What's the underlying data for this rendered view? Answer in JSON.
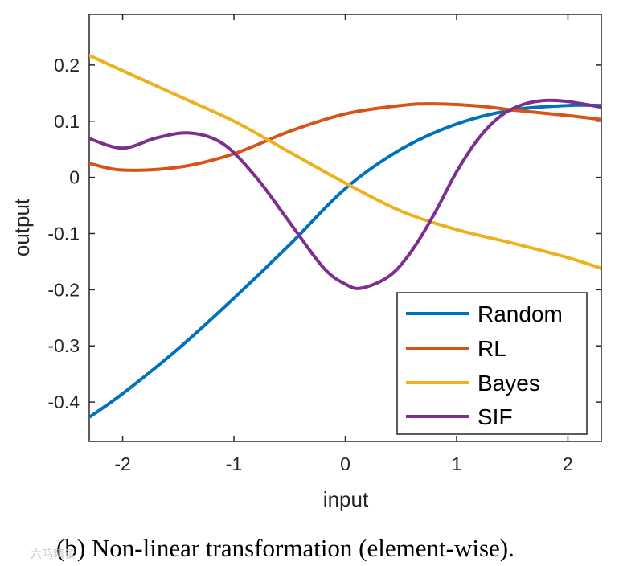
{
  "chart_data": {
    "type": "line",
    "xlabel": "input",
    "ylabel": "output",
    "xlim": [
      -2.3,
      2.3
    ],
    "ylim": [
      -0.47,
      0.29
    ],
    "xticks": [
      -2,
      -1,
      0,
      1,
      2
    ],
    "xtick_labels": [
      "-2",
      "-1",
      "0",
      "1",
      "2"
    ],
    "yticks": [
      -0.4,
      -0.3,
      -0.2,
      -0.1,
      0,
      0.1,
      0.2
    ],
    "ytick_labels": [
      "-0.4",
      "-0.3",
      "-0.2",
      "-0.1",
      "0",
      "0.1",
      "0.2"
    ],
    "grid": false,
    "legend_position": "bottom-right",
    "series": [
      {
        "name": "Random",
        "color": "#0072bd",
        "x": [
          -2.3,
          -2.0,
          -1.5,
          -1.0,
          -0.5,
          0.0,
          0.5,
          1.0,
          1.5,
          2.0,
          2.3
        ],
        "y": [
          -0.427,
          -0.385,
          -0.305,
          -0.215,
          -0.12,
          -0.02,
          0.05,
          0.095,
          0.12,
          0.128,
          0.128
        ]
      },
      {
        "name": "RL",
        "color": "#d95319",
        "x": [
          -2.3,
          -2.0,
          -1.5,
          -1.0,
          -0.5,
          0.0,
          0.5,
          0.8,
          1.2,
          1.5,
          2.0,
          2.3
        ],
        "y": [
          0.025,
          0.013,
          0.018,
          0.042,
          0.082,
          0.113,
          0.128,
          0.131,
          0.127,
          0.12,
          0.11,
          0.103
        ]
      },
      {
        "name": "Bayes",
        "color": "#edb120",
        "x": [
          -2.3,
          -2.0,
          -1.5,
          -1.0,
          -0.5,
          0.0,
          0.5,
          1.0,
          1.5,
          2.0,
          2.3
        ],
        "y": [
          0.217,
          0.19,
          0.145,
          0.1,
          0.045,
          -0.01,
          -0.06,
          -0.093,
          -0.117,
          -0.143,
          -0.162
        ]
      },
      {
        "name": "SIF",
        "color": "#7e2f8e",
        "x": [
          -2.3,
          -2.0,
          -1.7,
          -1.4,
          -1.1,
          -0.8,
          -0.5,
          -0.2,
          0.0,
          0.15,
          0.4,
          0.6,
          0.8,
          1.0,
          1.2,
          1.4,
          1.6,
          1.8,
          2.0,
          2.3
        ],
        "y": [
          0.069,
          0.052,
          0.07,
          0.079,
          0.06,
          0.0,
          -0.08,
          -0.16,
          -0.19,
          -0.197,
          -0.175,
          -0.13,
          -0.065,
          0.01,
          0.07,
          0.11,
          0.13,
          0.137,
          0.135,
          0.125
        ]
      }
    ],
    "caption": "(b) Non-linear transformation (element-wise).",
    "watermark": "六鸣精读"
  }
}
